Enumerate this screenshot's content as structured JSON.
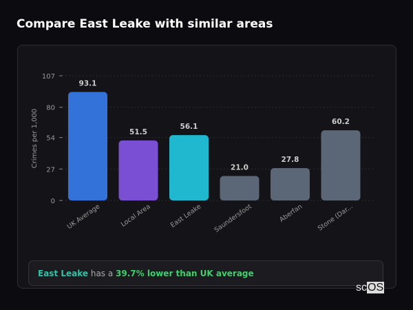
{
  "header": {
    "title": "Compare East Leake with similar areas"
  },
  "chart_data": {
    "type": "bar",
    "title": "",
    "ylabel": "Crimes per 1,000",
    "xlabel": "",
    "ylim": [
      0,
      107
    ],
    "yticks": [
      0,
      27,
      54,
      80,
      107
    ],
    "grid": true,
    "categories": [
      "UK Average",
      "Local Area",
      "East Leake",
      "Saundersfoot",
      "Aberfan",
      "Stone (Dar..."
    ],
    "values": [
      93.1,
      51.5,
      56.1,
      21.0,
      27.8,
      60.2
    ],
    "data_labels": [
      "93.1",
      "51.5",
      "56.1",
      "21.0",
      "27.8",
      "60.2"
    ],
    "colors": [
      "#3373d9",
      "#7b4fd4",
      "#20b8cf",
      "#5b6677",
      "#5b6677",
      "#5b6677"
    ]
  },
  "summary": {
    "area": "East Leake",
    "middle": " has a ",
    "comparison": "39.7% lower than UK average"
  },
  "logo": {
    "prefix": "sc",
    "suffix": "OS"
  }
}
